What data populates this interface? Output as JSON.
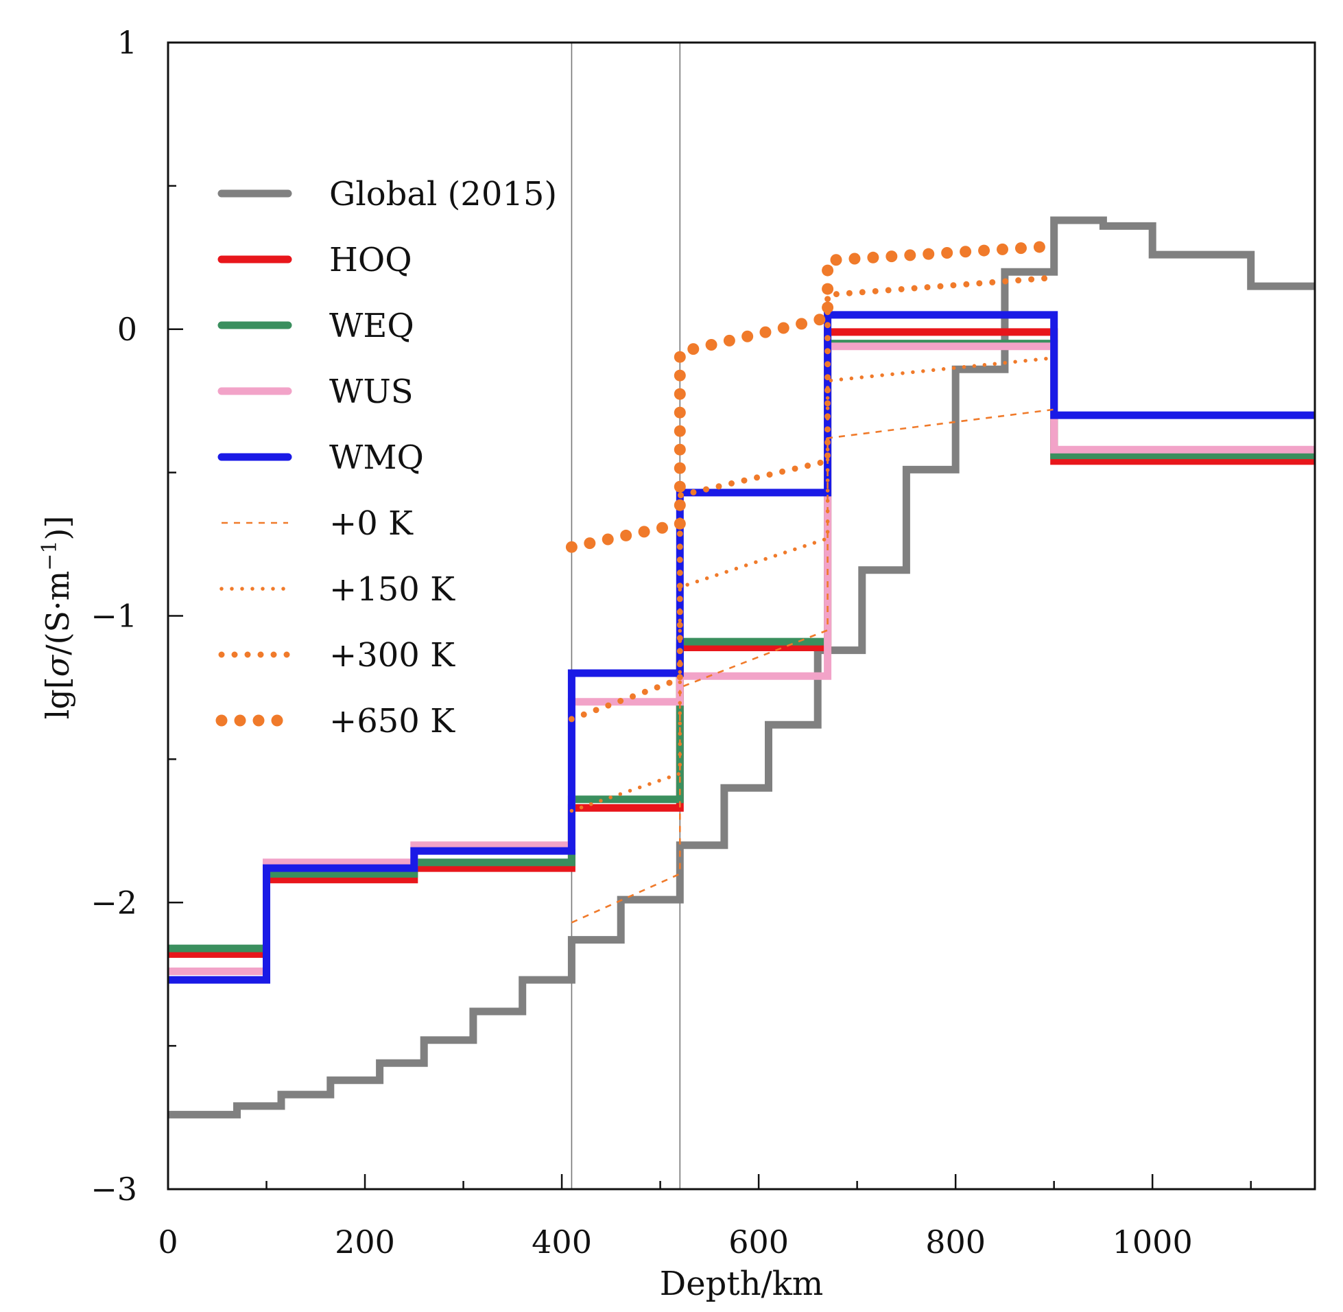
{
  "chart_data": {
    "type": "line",
    "xlabel": "Depth/km",
    "ylabel_parts": [
      "lg[",
      "σ",
      "/(S·m",
      "−1",
      ")]"
    ],
    "xlim": [
      0,
      1165
    ],
    "ylim": [
      -3,
      1
    ],
    "xticks": [
      0,
      200,
      400,
      600,
      800,
      1000
    ],
    "yticks": [
      -3,
      -2,
      -1,
      0,
      1
    ],
    "ytick_labels": [
      "−3",
      "−2",
      "−1",
      "0",
      "1"
    ],
    "vlines": [
      410,
      520
    ],
    "series": [
      {
        "name": "Global (2015)",
        "color": "#808080",
        "style": "solid",
        "points": [
          [
            0,
            -2.74
          ],
          [
            70,
            -2.74
          ],
          [
            70,
            -2.71
          ],
          [
            115,
            -2.71
          ],
          [
            115,
            -2.67
          ],
          [
            165,
            -2.67
          ],
          [
            165,
            -2.62
          ],
          [
            215,
            -2.62
          ],
          [
            215,
            -2.56
          ],
          [
            260,
            -2.56
          ],
          [
            260,
            -2.48
          ],
          [
            310,
            -2.48
          ],
          [
            310,
            -2.38
          ],
          [
            360,
            -2.38
          ],
          [
            360,
            -2.27
          ],
          [
            410,
            -2.27
          ],
          [
            410,
            -2.13
          ],
          [
            460,
            -2.13
          ],
          [
            460,
            -1.99
          ],
          [
            520,
            -1.99
          ],
          [
            520,
            -1.8
          ],
          [
            565,
            -1.8
          ],
          [
            565,
            -1.6
          ],
          [
            610,
            -1.6
          ],
          [
            610,
            -1.38
          ],
          [
            660,
            -1.38
          ],
          [
            660,
            -1.12
          ],
          [
            705,
            -1.12
          ],
          [
            705,
            -0.84
          ],
          [
            750,
            -0.84
          ],
          [
            750,
            -0.49
          ],
          [
            800,
            -0.49
          ],
          [
            800,
            -0.14
          ],
          [
            850,
            -0.14
          ],
          [
            850,
            0.2
          ],
          [
            900,
            0.2
          ],
          [
            900,
            0.38
          ],
          [
            950,
            0.38
          ],
          [
            950,
            0.36
          ],
          [
            1000,
            0.36
          ],
          [
            1000,
            0.26
          ],
          [
            1100,
            0.26
          ],
          [
            1100,
            0.15
          ],
          [
            1165,
            0.15
          ]
        ]
      },
      {
        "name": "HOQ",
        "color": "#e8161b",
        "style": "solid",
        "points": [
          [
            0,
            -2.18
          ],
          [
            100,
            -2.18
          ],
          [
            100,
            -1.92
          ],
          [
            250,
            -1.92
          ],
          [
            250,
            -1.88
          ],
          [
            410,
            -1.88
          ],
          [
            410,
            -1.67
          ],
          [
            520,
            -1.67
          ],
          [
            520,
            -1.11
          ],
          [
            670,
            -1.11
          ],
          [
            670,
            -0.01
          ],
          [
            900,
            -0.01
          ],
          [
            900,
            -0.46
          ],
          [
            1165,
            -0.46
          ]
        ]
      },
      {
        "name": "WEQ",
        "color": "#3a8f5e",
        "style": "solid",
        "points": [
          [
            0,
            -2.16
          ],
          [
            100,
            -2.16
          ],
          [
            100,
            -1.9
          ],
          [
            250,
            -1.9
          ],
          [
            250,
            -1.86
          ],
          [
            410,
            -1.86
          ],
          [
            410,
            -1.64
          ],
          [
            520,
            -1.64
          ],
          [
            520,
            -1.09
          ],
          [
            670,
            -1.09
          ],
          [
            670,
            -0.05
          ],
          [
            900,
            -0.05
          ],
          [
            900,
            -0.44
          ],
          [
            1165,
            -0.44
          ]
        ]
      },
      {
        "name": "WUS",
        "color": "#f2a3c8",
        "style": "solid",
        "points": [
          [
            0,
            -2.24
          ],
          [
            100,
            -2.24
          ],
          [
            100,
            -1.86
          ],
          [
            250,
            -1.86
          ],
          [
            250,
            -1.8
          ],
          [
            410,
            -1.8
          ],
          [
            410,
            -1.3
          ],
          [
            520,
            -1.3
          ],
          [
            520,
            -1.21
          ],
          [
            670,
            -1.21
          ],
          [
            670,
            -0.06
          ],
          [
            900,
            -0.06
          ],
          [
            900,
            -0.42
          ],
          [
            1165,
            -0.42
          ]
        ]
      },
      {
        "name": "WMQ",
        "color": "#1a1ae6",
        "style": "solid",
        "points": [
          [
            0,
            -2.27
          ],
          [
            100,
            -2.27
          ],
          [
            100,
            -1.88
          ],
          [
            250,
            -1.88
          ],
          [
            250,
            -1.82
          ],
          [
            410,
            -1.82
          ],
          [
            410,
            -1.2
          ],
          [
            520,
            -1.2
          ],
          [
            520,
            -0.57
          ],
          [
            670,
            -0.57
          ],
          [
            670,
            0.05
          ],
          [
            900,
            0.05
          ],
          [
            900,
            -0.3
          ],
          [
            1165,
            -0.3
          ]
        ]
      },
      {
        "name": "+0 K",
        "color": "#f07a2a",
        "style": "dash0",
        "points": [
          [
            410,
            -2.07
          ],
          [
            520,
            -1.9
          ],
          [
            520,
            -1.25
          ],
          [
            670,
            -1.05
          ],
          [
            670,
            -0.38
          ],
          [
            900,
            -0.28
          ]
        ]
      },
      {
        "name": "+150 K",
        "color": "#f07a2a",
        "style": "dot1",
        "points": [
          [
            410,
            -1.68
          ],
          [
            520,
            -1.55
          ],
          [
            520,
            -0.9
          ],
          [
            670,
            -0.73
          ],
          [
            670,
            -0.18
          ],
          [
            900,
            -0.1
          ]
        ]
      },
      {
        "name": "+300 K",
        "color": "#f07a2a",
        "style": "dot2",
        "points": [
          [
            410,
            -1.36
          ],
          [
            520,
            -1.22
          ],
          [
            520,
            -0.58
          ],
          [
            670,
            -0.46
          ],
          [
            670,
            0.12
          ],
          [
            900,
            0.18
          ]
        ]
      },
      {
        "name": "+650 K",
        "color": "#f07a2a",
        "style": "dot3",
        "points": [
          [
            410,
            -0.76
          ],
          [
            520,
            -0.68
          ],
          [
            520,
            -0.08
          ],
          [
            670,
            0.04
          ],
          [
            670,
            0.24
          ],
          [
            900,
            0.29
          ]
        ]
      }
    ]
  }
}
